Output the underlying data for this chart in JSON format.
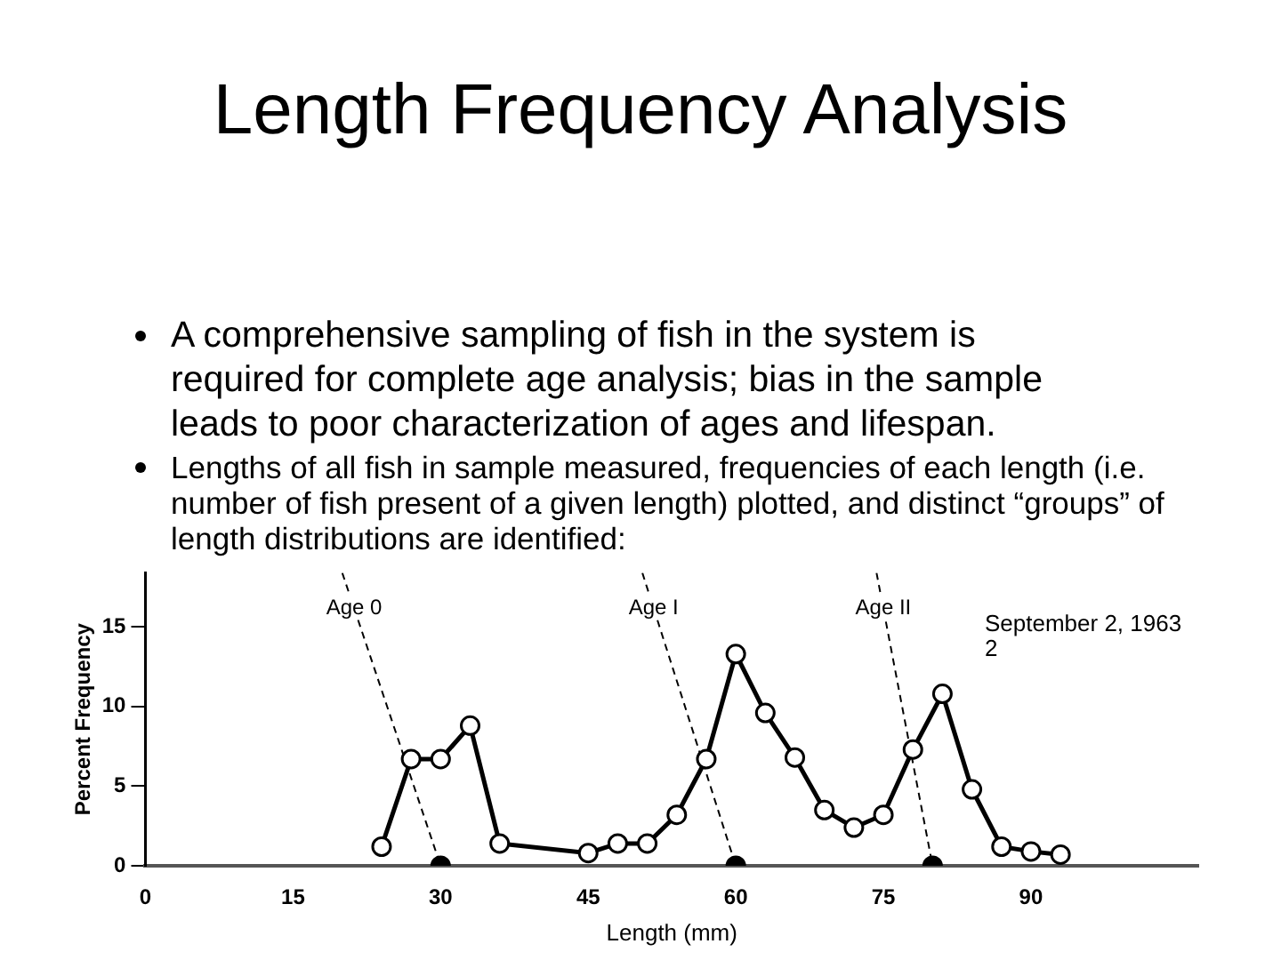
{
  "chart_data": {
    "type": "line",
    "title": "Length Frequency Analysis",
    "xlabel": "Length (mm)",
    "ylabel": "Percent Frequency",
    "xlim": [
      0,
      107
    ],
    "ylim": [
      0,
      18.4
    ],
    "xticks": [
      0,
      15,
      30,
      45,
      60,
      75,
      90
    ],
    "yticks": [
      0,
      5,
      10,
      15
    ],
    "grid": false,
    "legend": false,
    "annotations": [
      "A comprehensive sampling of fish in the system is required for complete age analysis; bias in the sample leads to poor characterization of ages and lifespan.",
      "Lengths of all fish in sample measured, frequencies of each length (i.e. number of fish present of a given length) plotted, and distinct “groups” of length distributions are identified:",
      "September 2, 1963",
      "2"
    ],
    "series": [
      {
        "color": "#000000",
        "marker": "circle",
        "line_style": "solid",
        "x": [
          24,
          27,
          30,
          33,
          36,
          45,
          48,
          51,
          54,
          57,
          60,
          63,
          66,
          69,
          72,
          75,
          78,
          81,
          84,
          87,
          90,
          93
        ],
        "values": [
          1.2,
          6.7,
          6.7,
          8.8,
          1.4,
          0.8,
          1.4,
          1.4,
          3.2,
          6.7,
          13.3,
          9.6,
          6.8,
          3.5,
          2.4,
          3.2,
          7.3,
          10.8,
          4.8,
          1.2,
          0.9,
          0.7
        ]
      },
      {
        "name": "Age 0",
        "color": "#000000",
        "marker": "none",
        "line_style": "dashed",
        "x": [
          20,
          30
        ],
        "values": [
          18.4,
          0
        ]
      },
      {
        "name": "Age I",
        "color": "#000000",
        "marker": "none",
        "line_style": "dashed",
        "x": [
          50.5,
          60
        ],
        "values": [
          18.4,
          0
        ]
      },
      {
        "name": "Age II",
        "color": "#000000",
        "marker": "none",
        "line_style": "dashed",
        "x": [
          74.3,
          80
        ],
        "values": [
          18.4,
          0
        ]
      },
      {
        "type": "scatter",
        "color": "#000000",
        "marker": "circle",
        "x": [
          30,
          60,
          80
        ],
        "values": [
          0,
          0,
          0
        ]
      }
    ]
  }
}
